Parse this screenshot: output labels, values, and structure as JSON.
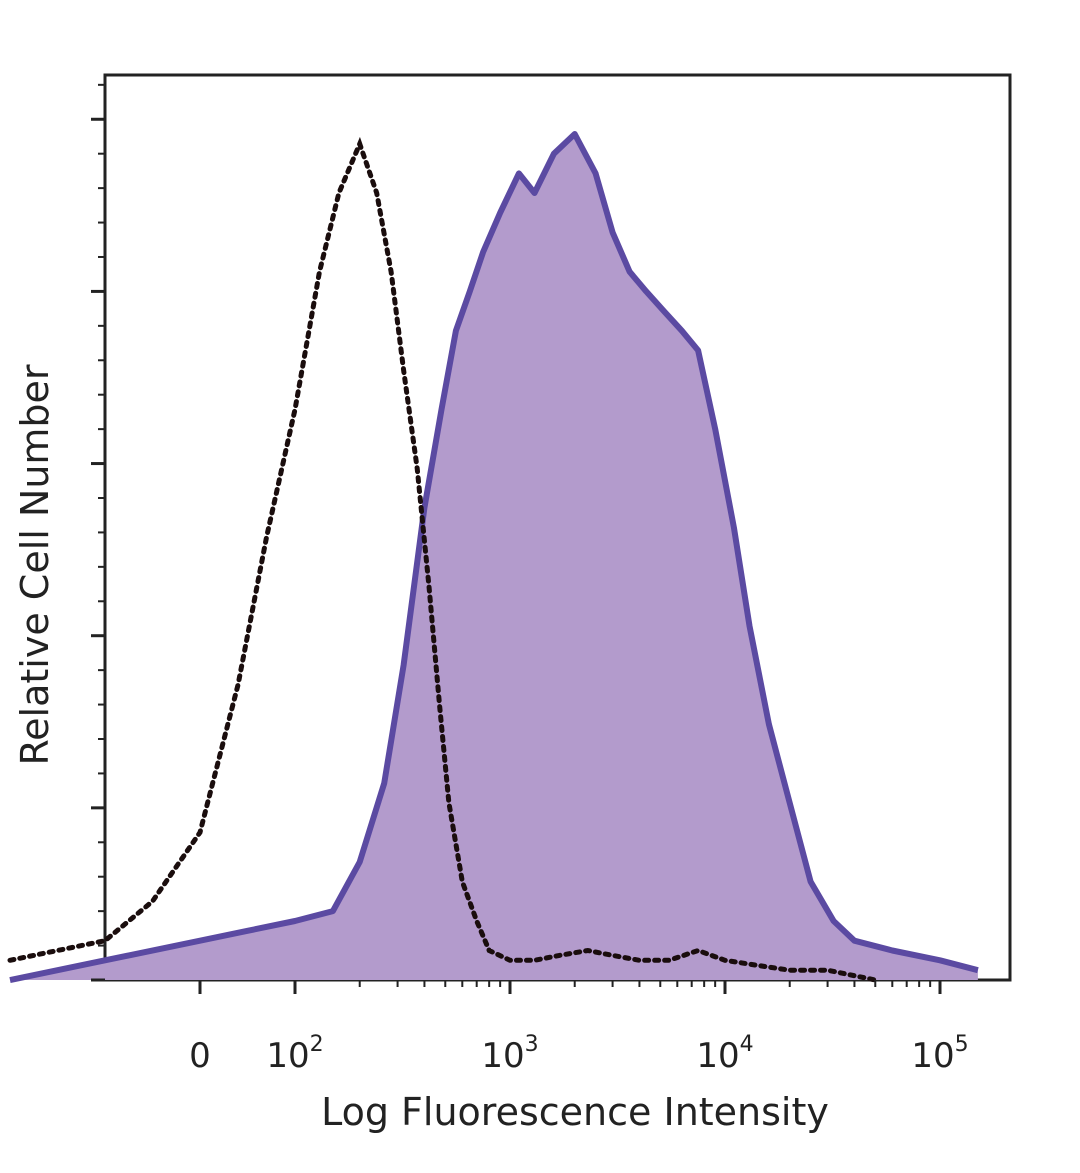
{
  "chart_data": {
    "type": "area",
    "title": "",
    "xlabel": "Log Fluorescence Intensity",
    "ylabel": "Relative Cell Number",
    "x_scale": "biexponential",
    "x_ticks": [
      {
        "value": 0,
        "base": "0",
        "exp": ""
      },
      {
        "value": 100,
        "base": "10",
        "exp": "2"
      },
      {
        "value": 1000,
        "base": "10",
        "exp": "3"
      },
      {
        "value": 10000,
        "base": "10",
        "exp": "4"
      },
      {
        "value": 100000,
        "base": "10",
        "exp": "5"
      }
    ],
    "y_tick_labels_shown": false,
    "grid": false,
    "legend": "none",
    "colors": {
      "stained_outline": "#5b4aa2",
      "stained_fill": "#b39bcc",
      "control_outline": "#1a0d0d",
      "axis": "#222222"
    },
    "series": [
      {
        "style": "dotted-outline",
        "values_x": [
          -200,
          -100,
          -50,
          0,
          40,
          70,
          100,
          130,
          160,
          200,
          240,
          280,
          320,
          370,
          420,
          470,
          520,
          600,
          700,
          800,
          1000,
          1300,
          1700,
          2300,
          3000,
          4000,
          5500,
          7500,
          10000,
          14000,
          20000,
          30000,
          50000
        ],
        "values_y": [
          0.02,
          0.04,
          0.08,
          0.15,
          0.3,
          0.45,
          0.58,
          0.72,
          0.8,
          0.85,
          0.8,
          0.72,
          0.62,
          0.52,
          0.4,
          0.28,
          0.18,
          0.1,
          0.06,
          0.03,
          0.02,
          0.02,
          0.025,
          0.03,
          0.025,
          0.02,
          0.02,
          0.03,
          0.02,
          0.015,
          0.01,
          0.01,
          0.0
        ]
      },
      {
        "style": "solid-outline-filled",
        "values_x": [
          -200,
          -100,
          0,
          50,
          100,
          150,
          200,
          260,
          320,
          400,
          480,
          560,
          650,
          750,
          900,
          1100,
          1300,
          1600,
          2000,
          2500,
          3000,
          3600,
          4300,
          5200,
          6300,
          7500,
          9000,
          11000,
          13000,
          16000,
          20000,
          25000,
          32000,
          40000,
          60000,
          100000,
          150000
        ],
        "values_y": [
          0.0,
          0.02,
          0.04,
          0.05,
          0.06,
          0.07,
          0.12,
          0.2,
          0.32,
          0.48,
          0.58,
          0.66,
          0.7,
          0.74,
          0.78,
          0.82,
          0.8,
          0.84,
          0.86,
          0.82,
          0.76,
          0.72,
          0.7,
          0.68,
          0.66,
          0.64,
          0.56,
          0.46,
          0.36,
          0.26,
          0.18,
          0.1,
          0.06,
          0.04,
          0.03,
          0.02,
          0.01
        ]
      }
    ]
  }
}
